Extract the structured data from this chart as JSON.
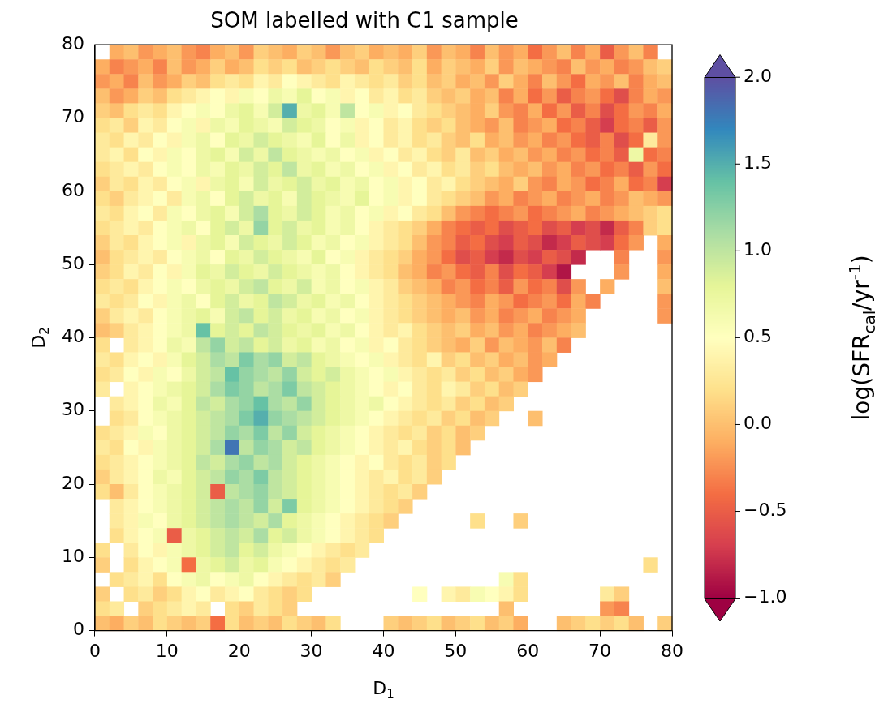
{
  "chart_data": {
    "type": "heatmap",
    "title": "SOM labelled with C1 sample",
    "xlabel": "D$_{1}$",
    "ylabel": "D$_{2}$",
    "clabel": "log(SFR$_{cal}$/yr$^{-1}$)",
    "xlim": [
      0,
      80
    ],
    "ylim": [
      0,
      80
    ],
    "xticks": [
      0,
      10,
      20,
      30,
      40,
      50,
      60,
      70,
      80
    ],
    "yticks": [
      0,
      10,
      20,
      30,
      40,
      50,
      60,
      70,
      80
    ],
    "clim": [
      -1,
      2
    ],
    "cticks": [
      {
        "value": -1,
        "label": "−1.0"
      },
      {
        "value": -0.5,
        "label": "−0.5"
      },
      {
        "value": 0,
        "label": "0.0"
      },
      {
        "value": 0.5,
        "label": "0.5"
      },
      {
        "value": 1,
        "label": "1.0"
      },
      {
        "value": 1.5,
        "label": "1.5"
      },
      {
        "value": 2,
        "label": "2.0"
      }
    ],
    "cells": [
      [
        null,
        -0.1,
        0.0,
        -0.2,
        -0.1,
        0.0,
        -0.2,
        -0.3,
        -0.1,
        0.0,
        -0.2,
        0.1,
        0.0,
        -0.1,
        0.1,
        0.0,
        -0.2,
        0.0,
        0.1,
        -0.1,
        0.0,
        -0.1,
        0.1,
        -0.2,
        0.0,
        -0.1,
        -0.3,
        0.0,
        -0.2,
        -0.1,
        -0.4,
        -0.2,
        0.0,
        -0.3,
        -0.1,
        -0.5,
        -0.2,
        0.0,
        -0.3,
        null
      ],
      [
        -0.1,
        -0.3,
        -0.2,
        -0.1,
        -0.3,
        0.0,
        -0.2,
        -0.1,
        0.1,
        -0.1,
        0.0,
        0.2,
        0.1,
        0.2,
        0.0,
        0.1,
        0.2,
        0.1,
        0.0,
        0.2,
        0.1,
        0.0,
        0.2,
        -0.1,
        0.1,
        0.0,
        -0.1,
        0.1,
        -0.2,
        0.0,
        -0.1,
        -0.2,
        -0.3,
        0.0,
        -0.2,
        -0.1,
        -0.3,
        -0.2,
        0.0,
        0.1
      ],
      [
        -0.2,
        -0.1,
        -0.3,
        0.0,
        -0.2,
        -0.1,
        0.1,
        0.0,
        0.2,
        0.3,
        0.2,
        0.4,
        0.3,
        0.5,
        0.4,
        0.3,
        0.2,
        0.4,
        0.3,
        0.2,
        0.3,
        0.1,
        0.2,
        0.0,
        0.1,
        -0.1,
        0.0,
        -0.2,
        0.1,
        -0.1,
        -0.3,
        0.0,
        -0.2,
        -0.4,
        -0.1,
        -0.2,
        0.0,
        -0.3,
        -0.1,
        0.0
      ],
      [
        0.0,
        -0.2,
        -0.1,
        0.1,
        0.0,
        0.2,
        0.3,
        0.4,
        0.5,
        0.4,
        0.6,
        0.5,
        0.7,
        0.6,
        0.8,
        0.5,
        0.6,
        0.4,
        0.5,
        0.3,
        0.4,
        0.2,
        0.3,
        0.1,
        0.0,
        0.1,
        -0.1,
        0.0,
        -0.3,
        -0.1,
        -0.4,
        -0.2,
        -0.5,
        -0.3,
        -0.2,
        -0.4,
        -0.6,
        -0.3,
        -0.1,
        -0.2
      ],
      [
        0.1,
        0.0,
        0.2,
        0.3,
        0.2,
        0.4,
        0.5,
        0.6,
        0.5,
        0.7,
        0.8,
        0.6,
        0.9,
        1.5,
        0.7,
        0.8,
        0.6,
        1.0,
        0.5,
        0.6,
        0.4,
        0.5,
        0.3,
        0.2,
        0.1,
        0.0,
        -0.1,
        0.1,
        -0.2,
        -0.3,
        -0.1,
        -0.4,
        -0.2,
        -0.5,
        -0.3,
        -0.6,
        -0.4,
        -0.2,
        -0.3,
        -0.1
      ],
      [
        0.2,
        0.3,
        0.1,
        0.4,
        0.3,
        0.5,
        0.6,
        0.4,
        0.7,
        0.6,
        0.8,
        0.7,
        0.6,
        0.9,
        0.8,
        0.7,
        0.5,
        0.6,
        0.4,
        0.5,
        0.3,
        0.4,
        0.2,
        0.1,
        0.2,
        0.0,
        -0.1,
        -0.2,
        0.0,
        -0.3,
        -0.2,
        -0.1,
        -0.4,
        -0.3,
        -0.5,
        -0.7,
        -0.4,
        -0.3,
        -0.5,
        -0.2
      ],
      [
        0.3,
        0.2,
        0.4,
        0.3,
        0.5,
        0.4,
        0.6,
        0.7,
        0.5,
        0.8,
        0.7,
        0.9,
        0.8,
        0.7,
        0.6,
        0.8,
        0.5,
        0.7,
        0.4,
        0.5,
        0.3,
        0.4,
        0.2,
        0.3,
        0.1,
        0.0,
        0.2,
        -0.1,
        0.0,
        -0.2,
        -0.1,
        -0.3,
        -0.2,
        -0.4,
        -0.5,
        -0.3,
        -0.6,
        -0.4,
        0.3,
        -0.2
      ],
      [
        0.3,
        0.4,
        0.2,
        0.5,
        0.4,
        0.6,
        0.5,
        0.7,
        0.8,
        0.6,
        0.9,
        0.7,
        1.0,
        0.8,
        0.7,
        0.6,
        0.7,
        0.5,
        0.6,
        0.4,
        0.5,
        0.3,
        0.4,
        0.2,
        0.1,
        0.3,
        0.0,
        0.1,
        -0.1,
        0.0,
        -0.2,
        -0.1,
        -0.3,
        -0.2,
        -0.4,
        -0.3,
        -0.5,
        0.7,
        -0.4,
        -0.3
      ],
      [
        0.2,
        0.3,
        0.4,
        0.3,
        0.5,
        0.6,
        0.5,
        0.7,
        0.6,
        0.8,
        0.7,
        0.9,
        0.8,
        1.0,
        0.7,
        0.8,
        0.6,
        0.7,
        0.5,
        0.6,
        0.4,
        0.5,
        0.3,
        0.4,
        0.2,
        0.3,
        0.1,
        0.2,
        0.0,
        -0.1,
        0.0,
        -0.2,
        -0.1,
        -0.3,
        -0.2,
        -0.4,
        -0.3,
        -0.5,
        -0.2,
        -0.4
      ],
      [
        0.1,
        0.3,
        0.2,
        0.4,
        0.3,
        0.5,
        0.6,
        0.4,
        0.7,
        0.8,
        0.6,
        0.9,
        0.7,
        0.8,
        0.9,
        0.7,
        0.8,
        0.6,
        0.7,
        0.5,
        0.6,
        0.4,
        0.5,
        0.3,
        0.4,
        0.2,
        0.1,
        0.0,
        -0.1,
        0.1,
        -0.2,
        -0.3,
        -0.1,
        -0.2,
        -0.4,
        -0.3,
        -0.1,
        -0.4,
        -0.3,
        -0.7
      ],
      [
        0.2,
        0.1,
        0.3,
        0.4,
        0.5,
        0.3,
        0.6,
        0.7,
        0.5,
        0.8,
        0.9,
        0.7,
        0.8,
        0.6,
        0.9,
        0.8,
        0.7,
        0.6,
        0.8,
        0.5,
        0.6,
        0.4,
        0.5,
        0.3,
        0.2,
        0.1,
        0.0,
        -0.2,
        -0.1,
        -0.3,
        -0.2,
        -0.1,
        -0.3,
        -0.2,
        -0.1,
        -0.3,
        -0.2,
        0.0,
        -0.1,
        -0.2
      ],
      [
        0.3,
        0.2,
        0.4,
        0.5,
        0.3,
        0.6,
        0.5,
        0.7,
        0.8,
        0.6,
        0.9,
        1.1,
        0.8,
        0.7,
        0.9,
        0.8,
        0.6,
        0.7,
        0.5,
        0.6,
        0.4,
        0.5,
        0.3,
        0.2,
        0.0,
        -0.2,
        -0.3,
        -0.4,
        -0.3,
        -0.2,
        -0.4,
        -0.3,
        -0.2,
        -0.1,
        -0.3,
        -0.2,
        -0.1,
        0.0,
        0.1,
        0.2
      ],
      [
        0.2,
        0.3,
        0.4,
        0.3,
        0.5,
        0.6,
        0.7,
        0.5,
        0.8,
        0.9,
        0.7,
        1.2,
        0.8,
        0.9,
        0.7,
        0.8,
        0.6,
        0.7,
        0.5,
        0.4,
        0.3,
        0.2,
        0.1,
        -0.1,
        -0.3,
        -0.4,
        -0.5,
        -0.4,
        -0.6,
        -0.5,
        -0.4,
        -0.6,
        -0.5,
        -0.7,
        -0.6,
        -0.8,
        -0.5,
        -0.3,
        0.1,
        0.2
      ],
      [
        0.1,
        0.3,
        0.2,
        0.4,
        0.5,
        0.6,
        0.4,
        0.7,
        0.8,
        0.6,
        0.9,
        0.8,
        0.7,
        0.9,
        0.8,
        0.6,
        0.7,
        0.5,
        0.6,
        0.4,
        0.3,
        0.2,
        0.0,
        -0.2,
        -0.3,
        -0.5,
        -0.4,
        -0.6,
        -0.7,
        -0.5,
        -0.6,
        -0.8,
        -0.7,
        -0.5,
        -0.6,
        -0.7,
        -0.4,
        -0.2,
        null,
        -0.1
      ],
      [
        0.0,
        0.2,
        0.3,
        0.4,
        0.3,
        0.5,
        0.6,
        0.7,
        0.5,
        0.8,
        0.7,
        0.9,
        0.8,
        0.7,
        0.6,
        0.8,
        0.5,
        0.6,
        0.4,
        0.3,
        0.2,
        0.1,
        -0.1,
        -0.2,
        -0.4,
        -0.6,
        -0.5,
        -0.7,
        -0.8,
        -0.6,
        -0.7,
        -0.5,
        -0.6,
        -0.8,
        null,
        null,
        -0.3,
        null,
        null,
        -0.2
      ],
      [
        0.1,
        0.2,
        0.4,
        0.3,
        0.5,
        0.4,
        0.6,
        0.8,
        0.7,
        0.9,
        0.8,
        0.7,
        0.9,
        0.8,
        0.7,
        0.6,
        0.7,
        0.5,
        0.4,
        0.3,
        0.2,
        0.0,
        -0.1,
        -0.3,
        -0.2,
        -0.4,
        -0.5,
        -0.3,
        -0.6,
        -0.4,
        -0.5,
        -0.7,
        -0.9,
        null,
        null,
        null,
        -0.2,
        null,
        null,
        -0.1
      ],
      [
        0.2,
        0.3,
        0.2,
        0.4,
        0.5,
        0.6,
        0.5,
        0.7,
        0.8,
        0.7,
        0.9,
        1.0,
        0.8,
        0.7,
        0.9,
        0.6,
        0.7,
        0.5,
        0.6,
        0.4,
        0.3,
        0.1,
        0.0,
        -0.1,
        -0.3,
        -0.2,
        -0.4,
        -0.3,
        -0.5,
        -0.2,
        -0.4,
        -0.3,
        -0.6,
        -0.2,
        null,
        -0.1,
        null,
        null,
        null,
        0.0
      ],
      [
        0.3,
        0.2,
        0.3,
        0.5,
        0.4,
        0.6,
        0.7,
        0.5,
        0.8,
        0.9,
        0.7,
        0.8,
        1.0,
        0.9,
        0.7,
        0.8,
        0.6,
        0.7,
        0.5,
        0.4,
        0.3,
        0.2,
        0.1,
        0.0,
        -0.1,
        -0.2,
        -0.3,
        -0.1,
        -0.2,
        -0.4,
        -0.3,
        -0.2,
        -0.4,
        -0.1,
        -0.3,
        null,
        null,
        null,
        null,
        -0.2
      ],
      [
        0.1,
        0.3,
        0.4,
        0.3,
        0.5,
        0.6,
        0.7,
        0.8,
        0.6,
        0.9,
        1.0,
        0.8,
        0.9,
        0.7,
        0.8,
        0.6,
        0.7,
        0.5,
        0.6,
        0.4,
        0.3,
        0.2,
        0.1,
        0.0,
        -0.1,
        0.0,
        -0.2,
        -0.1,
        -0.3,
        -0.2,
        -0.1,
        -0.3,
        -0.2,
        -0.1,
        null,
        null,
        null,
        null,
        null,
        -0.2
      ],
      [
        0.0,
        0.1,
        0.3,
        0.4,
        0.5,
        0.6,
        0.7,
        1.4,
        0.8,
        0.9,
        0.8,
        1.0,
        0.9,
        0.8,
        0.7,
        0.8,
        0.6,
        0.7,
        0.5,
        0.4,
        0.3,
        0.4,
        0.2,
        0.1,
        0.0,
        0.1,
        -0.1,
        0.0,
        -0.2,
        -0.1,
        -0.3,
        -0.2,
        -0.1,
        0.0,
        null,
        null,
        null,
        null,
        null,
        null
      ],
      [
        0.2,
        null,
        0.3,
        0.4,
        0.5,
        0.7,
        0.6,
        1.0,
        1.2,
        0.9,
        1.0,
        0.8,
        0.9,
        0.7,
        0.8,
        0.6,
        0.7,
        0.5,
        0.6,
        0.4,
        0.5,
        0.3,
        0.2,
        0.1,
        0.0,
        -0.1,
        0.1,
        -0.2,
        0.0,
        -0.1,
        -0.2,
        0.0,
        -0.3,
        null,
        null,
        null,
        null,
        null,
        null,
        null
      ],
      [
        0.3,
        0.2,
        0.4,
        0.5,
        0.4,
        0.6,
        0.8,
        0.9,
        1.1,
        1.0,
        1.3,
        1.1,
        1.2,
        0.9,
        1.0,
        0.8,
        0.7,
        0.6,
        0.5,
        0.6,
        0.4,
        0.3,
        0.2,
        0.4,
        0.1,
        0.2,
        0.0,
        0.1,
        -0.1,
        0.0,
        -0.2,
        -0.1,
        null,
        null,
        null,
        null,
        null,
        null,
        null,
        null
      ],
      [
        0.2,
        0.3,
        0.5,
        0.4,
        0.6,
        0.5,
        0.7,
        0.9,
        1.0,
        1.4,
        1.2,
        1.1,
        1.0,
        1.2,
        0.9,
        0.8,
        0.9,
        0.7,
        0.6,
        0.5,
        0.6,
        0.4,
        0.3,
        0.2,
        0.3,
        0.1,
        0.2,
        0.0,
        0.1,
        -0.1,
        -0.2,
        null,
        null,
        null,
        null,
        null,
        null,
        null,
        null,
        null
      ],
      [
        0.3,
        null,
        0.4,
        0.5,
        0.6,
        0.7,
        0.8,
        0.9,
        1.1,
        1.3,
        1.2,
        1.0,
        1.1,
        1.3,
        1.0,
        0.9,
        0.8,
        0.7,
        0.6,
        0.5,
        0.4,
        0.5,
        0.3,
        0.2,
        0.4,
        0.3,
        0.1,
        0.2,
        0.0,
        0.1,
        null,
        null,
        null,
        null,
        null,
        null,
        null,
        null,
        null,
        null
      ],
      [
        null,
        0.3,
        0.4,
        0.5,
        0.7,
        0.6,
        0.8,
        1.0,
        0.9,
        1.1,
        1.2,
        1.4,
        1.1,
        1.0,
        1.2,
        0.9,
        0.8,
        0.7,
        0.6,
        0.7,
        0.5,
        0.4,
        0.3,
        0.2,
        0.3,
        0.1,
        0.2,
        0.0,
        0.1,
        null,
        null,
        null,
        null,
        null,
        null,
        null,
        null,
        null,
        null,
        null
      ],
      [
        null,
        0.2,
        0.3,
        0.5,
        0.6,
        0.7,
        0.8,
        0.9,
        1.0,
        1.1,
        1.3,
        1.5,
        1.2,
        1.1,
        1.0,
        0.9,
        0.8,
        0.7,
        0.6,
        0.5,
        0.4,
        0.3,
        0.2,
        0.3,
        0.1,
        0.2,
        0.0,
        0.1,
        null,
        null,
        0.0,
        null,
        null,
        null,
        null,
        null,
        null,
        null,
        null,
        null
      ],
      [
        0.2,
        0.3,
        0.4,
        0.6,
        0.5,
        0.7,
        0.8,
        0.9,
        1.0,
        1.2,
        1.1,
        1.3,
        1.0,
        1.2,
        0.9,
        0.8,
        0.7,
        0.6,
        0.5,
        0.4,
        0.3,
        0.2,
        0.3,
        0.1,
        0.2,
        0.0,
        0.1,
        null,
        null,
        null,
        null,
        null,
        null,
        null,
        null,
        null,
        null,
        null,
        null,
        null
      ],
      [
        0.3,
        0.2,
        0.5,
        0.4,
        0.6,
        0.7,
        0.8,
        0.9,
        1.1,
        1.8,
        1.0,
        1.2,
        1.1,
        0.9,
        1.0,
        0.8,
        0.7,
        0.6,
        0.5,
        0.4,
        0.3,
        0.4,
        0.2,
        0.1,
        0.2,
        0.0,
        null,
        null,
        null,
        null,
        null,
        null,
        null,
        null,
        null,
        null,
        null,
        null,
        null,
        null
      ],
      [
        0.2,
        0.3,
        0.4,
        0.5,
        0.6,
        0.7,
        0.8,
        1.0,
        0.9,
        1.1,
        1.2,
        1.0,
        1.1,
        0.9,
        0.8,
        0.7,
        0.6,
        0.5,
        0.4,
        0.5,
        0.3,
        0.2,
        0.3,
        0.1,
        0.2,
        null,
        null,
        null,
        null,
        null,
        null,
        null,
        null,
        null,
        null,
        null,
        null,
        null,
        null,
        null
      ],
      [
        0.1,
        0.3,
        0.4,
        0.5,
        0.7,
        0.6,
        0.8,
        0.9,
        1.0,
        1.2,
        1.1,
        1.3,
        1.0,
        0.9,
        0.8,
        0.7,
        0.6,
        0.5,
        0.4,
        0.3,
        0.4,
        0.2,
        0.3,
        0.1,
        null,
        null,
        null,
        null,
        null,
        null,
        null,
        null,
        null,
        null,
        null,
        null,
        null,
        null,
        null,
        null
      ],
      [
        0.2,
        0.0,
        0.3,
        0.5,
        0.6,
        0.7,
        0.8,
        0.9,
        -0.5,
        1.0,
        1.1,
        1.2,
        1.0,
        0.9,
        0.8,
        0.7,
        0.6,
        0.5,
        0.4,
        0.3,
        0.2,
        0.3,
        0.1,
        null,
        null,
        null,
        null,
        null,
        null,
        null,
        null,
        null,
        null,
        null,
        null,
        null,
        null,
        null,
        null,
        null
      ],
      [
        null,
        0.3,
        0.4,
        0.5,
        0.6,
        0.7,
        0.8,
        0.9,
        1.0,
        1.1,
        1.0,
        1.2,
        0.9,
        1.3,
        0.8,
        0.7,
        0.6,
        0.5,
        0.4,
        0.3,
        0.2,
        0.1,
        null,
        null,
        null,
        null,
        null,
        null,
        null,
        null,
        null,
        null,
        null,
        null,
        null,
        null,
        null,
        null,
        null,
        null
      ],
      [
        null,
        0.3,
        0.4,
        0.6,
        0.5,
        0.7,
        0.8,
        0.9,
        1.0,
        1.1,
        1.0,
        0.9,
        1.1,
        0.8,
        0.7,
        0.6,
        0.5,
        0.4,
        0.3,
        0.2,
        0.1,
        null,
        null,
        null,
        null,
        null,
        0.2,
        null,
        null,
        0.1,
        null,
        null,
        null,
        null,
        null,
        null,
        null,
        null,
        null,
        null
      ],
      [
        null,
        0.2,
        0.4,
        0.5,
        0.6,
        -0.5,
        0.7,
        0.8,
        0.9,
        1.0,
        0.9,
        1.1,
        0.8,
        0.9,
        0.7,
        0.6,
        0.5,
        0.4,
        0.3,
        0.2,
        null,
        null,
        null,
        null,
        null,
        null,
        null,
        null,
        null,
        null,
        null,
        null,
        null,
        null,
        null,
        null,
        null,
        null,
        null,
        null
      ],
      [
        0.2,
        null,
        0.3,
        0.5,
        0.4,
        0.6,
        0.7,
        0.8,
        0.9,
        1.0,
        0.8,
        0.9,
        0.7,
        0.6,
        0.5,
        0.4,
        0.3,
        0.2,
        0.3,
        null,
        null,
        null,
        null,
        null,
        null,
        null,
        null,
        null,
        null,
        null,
        null,
        null,
        null,
        null,
        null,
        null,
        null,
        null,
        null,
        null
      ],
      [
        0.1,
        null,
        0.2,
        0.4,
        0.5,
        0.6,
        -0.4,
        0.7,
        0.8,
        0.9,
        0.7,
        0.8,
        0.6,
        0.5,
        0.4,
        0.3,
        0.2,
        0.3,
        null,
        null,
        null,
        null,
        null,
        null,
        null,
        null,
        null,
        null,
        null,
        null,
        null,
        null,
        null,
        null,
        null,
        null,
        null,
        null,
        0.2,
        null
      ],
      [
        null,
        0.2,
        0.3,
        0.4,
        0.2,
        0.5,
        0.6,
        0.7,
        0.5,
        0.6,
        0.7,
        0.5,
        0.4,
        0.3,
        0.2,
        0.3,
        0.1,
        null,
        null,
        null,
        null,
        null,
        null,
        null,
        null,
        null,
        null,
        null,
        0.6,
        0.2,
        null,
        null,
        null,
        null,
        null,
        null,
        null,
        null,
        null,
        null
      ],
      [
        0.1,
        null,
        0.2,
        0.3,
        0.1,
        0.2,
        0.4,
        0.5,
        0.3,
        0.4,
        0.5,
        0.3,
        0.2,
        0.1,
        0.2,
        null,
        null,
        null,
        null,
        null,
        null,
        null,
        0.5,
        null,
        0.4,
        0.3,
        0.6,
        0.5,
        0.4,
        0.2,
        null,
        null,
        null,
        null,
        null,
        0.3,
        0.1,
        null,
        null,
        null
      ],
      [
        0.2,
        0.3,
        null,
        0.1,
        0.2,
        0.3,
        0.4,
        0.3,
        null,
        0.2,
        0.1,
        0.3,
        0.2,
        0.1,
        null,
        null,
        null,
        null,
        null,
        null,
        null,
        null,
        null,
        null,
        null,
        null,
        null,
        null,
        0.0,
        null,
        null,
        null,
        null,
        null,
        null,
        -0.2,
        -0.3,
        null,
        null,
        null
      ],
      [
        0.0,
        -0.1,
        0.1,
        0.0,
        0.2,
        0.1,
        0.0,
        0.1,
        -0.4,
        0.2,
        0.0,
        0.1,
        0.0,
        0.2,
        0.1,
        0.0,
        0.2,
        null,
        null,
        null,
        0.1,
        0.0,
        0.1,
        0.2,
        0.0,
        0.1,
        0.2,
        0.0,
        0.1,
        -0.1,
        null,
        null,
        0.0,
        0.1,
        0.2,
        0.1,
        0.2,
        0.0,
        null,
        0.1
      ]
    ]
  }
}
